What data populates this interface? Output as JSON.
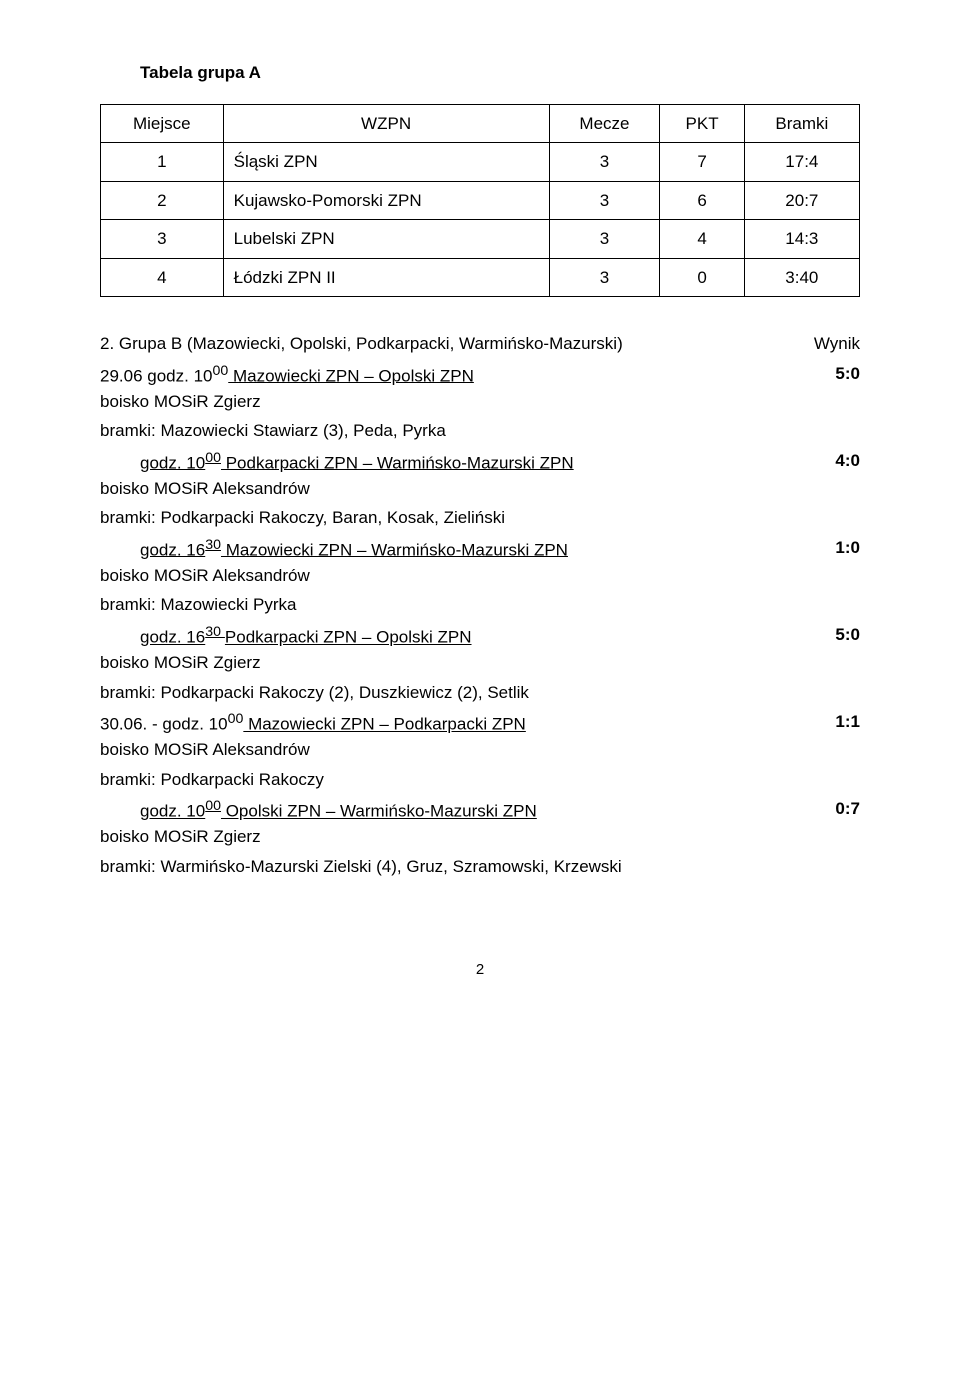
{
  "title": "Tabela grupa A",
  "table": {
    "columns": [
      "Miejsce",
      "WZPN",
      "Mecze",
      "PKT",
      "Bramki"
    ],
    "rows": [
      [
        "1",
        "Śląski ZPN",
        "3",
        "7",
        "17:4"
      ],
      [
        "2",
        "Kujawsko-Pomorski ZPN",
        "3",
        "6",
        "20:7"
      ],
      [
        "3",
        "Lubelski ZPN",
        "3",
        "4",
        "14:3"
      ],
      [
        "4",
        "Łódzki ZPN II",
        "3",
        "0",
        "3:40"
      ]
    ]
  },
  "section": {
    "heading": "2. Grupa B (Mazowiecki, Opolski, Podkarpacki, Warmińsko-Mazurski)",
    "result_label": "Wynik"
  },
  "matches": [
    {
      "prefix": "29.06 godz. 10",
      "sup": "00",
      "teams": " Mazowiecki ZPN – Opolski ZPN",
      "score": "5:0",
      "venue": "boisko MOSiR Zgierz",
      "bramki": "bramki: Mazowiecki Stawiarz (3), Peda, Pyrka"
    },
    {
      "prefix": "godz. 10",
      "sup": "00",
      "teams": " Podkarpacki ZPN – Warmińsko-Mazurski ZPN",
      "score": "4:0",
      "venue": "boisko MOSiR Aleksandrów",
      "bramki": "bramki: Podkarpacki Rakoczy, Baran, Kosak, Zieliński"
    },
    {
      "prefix": "godz. 16",
      "sup": "30",
      "teams": " Mazowiecki ZPN – Warmińsko-Mazurski ZPN",
      "score": "1:0",
      "venue": "boisko MOSiR Aleksandrów",
      "bramki": "bramki: Mazowiecki Pyrka"
    },
    {
      "prefix": "godz. 16",
      "sup": "30 ",
      "teams": "Podkarpacki ZPN – Opolski ZPN",
      "score": "5:0",
      "venue": "boisko MOSiR Zgierz",
      "bramki": "bramki: Podkarpacki Rakoczy (2), Duszkiewicz (2), Setlik"
    },
    {
      "prefix": "30.06. - godz. 10",
      "sup": "00",
      "teams": " Mazowiecki ZPN – Podkarpacki ZPN",
      "score": "1:1",
      "venue": "boisko MOSiR Aleksandrów",
      "bramki": "bramki: Podkarpacki Rakoczy"
    },
    {
      "prefix": "godz. 10",
      "sup": "00",
      "teams": " Opolski ZPN – Warmińsko-Mazurski ZPN",
      "score": "0:7",
      "venue": "boisko MOSiR Zgierz",
      "bramki": "bramki: Warmińsko-Mazurski Zielski (4), Gruz, Szramowski, Krzewski"
    }
  ],
  "page_number": "2"
}
